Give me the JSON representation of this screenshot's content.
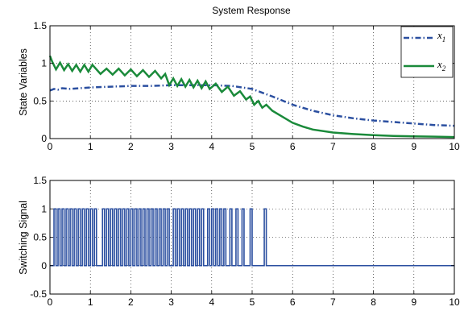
{
  "chart_data": [
    {
      "type": "line",
      "title": "System Response",
      "xlabel": "",
      "ylabel": "State Variables",
      "xlim": [
        0,
        10
      ],
      "ylim": [
        0,
        1.5
      ],
      "xticks": [
        0,
        1,
        2,
        3,
        4,
        5,
        6,
        7,
        8,
        9,
        10
      ],
      "yticks": [
        0,
        0.5,
        1,
        1.5
      ],
      "xtick_labels": [
        "0",
        "1",
        "2",
        "3",
        "4",
        "5",
        "6",
        "7",
        "8",
        "9",
        "10"
      ],
      "ytick_labels": [
        "0",
        "0.5",
        "1",
        "1.5"
      ],
      "grid": true,
      "legend_position": "top-right",
      "series": [
        {
          "name": "x1",
          "legend_main": "x",
          "legend_sub": "1",
          "color": "#2b4fa0",
          "style": "dash-dot",
          "x": [
            0,
            0.1,
            0.2,
            0.3,
            0.5,
            1,
            1.5,
            2,
            2.5,
            3,
            3.5,
            4,
            4.5,
            5,
            5.5,
            6,
            6.5,
            7,
            7.5,
            8,
            8.5,
            9,
            9.5,
            10
          ],
          "y": [
            0.64,
            0.66,
            0.65,
            0.67,
            0.66,
            0.68,
            0.69,
            0.7,
            0.7,
            0.71,
            0.71,
            0.71,
            0.7,
            0.66,
            0.56,
            0.45,
            0.37,
            0.31,
            0.27,
            0.24,
            0.22,
            0.2,
            0.18,
            0.17
          ]
        },
        {
          "name": "x2",
          "legend_main": "x",
          "legend_sub": "2",
          "color": "#1a8a3a",
          "style": "solid",
          "x": [
            0,
            0.05,
            0.15,
            0.25,
            0.35,
            0.45,
            0.55,
            0.65,
            0.75,
            0.85,
            0.95,
            1.05,
            1.25,
            1.4,
            1.55,
            1.7,
            1.85,
            2.0,
            2.15,
            2.3,
            2.45,
            2.6,
            2.75,
            2.85,
            2.95,
            3.05,
            3.15,
            3.25,
            3.35,
            3.45,
            3.55,
            3.65,
            3.75,
            3.85,
            3.95,
            4.1,
            4.25,
            4.4,
            4.55,
            4.7,
            4.85,
            4.95,
            5.05,
            5.15,
            5.25,
            5.35,
            5.5,
            5.75,
            6.0,
            6.25,
            6.5,
            7.0,
            7.5,
            8.0,
            8.5,
            9.0,
            9.5,
            10.0
          ],
          "y": [
            1.1,
            1.03,
            0.92,
            1.01,
            0.91,
            0.99,
            0.9,
            0.98,
            0.89,
            0.98,
            0.89,
            0.98,
            0.86,
            0.93,
            0.85,
            0.93,
            0.84,
            0.92,
            0.83,
            0.91,
            0.82,
            0.9,
            0.8,
            0.86,
            0.71,
            0.8,
            0.7,
            0.79,
            0.69,
            0.78,
            0.68,
            0.77,
            0.67,
            0.76,
            0.66,
            0.73,
            0.62,
            0.69,
            0.57,
            0.63,
            0.52,
            0.56,
            0.45,
            0.5,
            0.41,
            0.45,
            0.37,
            0.29,
            0.21,
            0.16,
            0.12,
            0.08,
            0.06,
            0.045,
            0.035,
            0.03,
            0.025,
            0.02
          ]
        }
      ]
    },
    {
      "type": "line",
      "title": "",
      "xlabel": "",
      "ylabel": "Switching Signal",
      "xlim": [
        0,
        10
      ],
      "ylim": [
        -0.5,
        1.5
      ],
      "xticks": [
        0,
        1,
        2,
        3,
        4,
        5,
        6,
        7,
        8,
        9,
        10
      ],
      "yticks": [
        -0.5,
        0,
        0.5,
        1,
        1.5
      ],
      "xtick_labels": [
        "0",
        "1",
        "2",
        "3",
        "4",
        "5",
        "6",
        "7",
        "8",
        "9",
        "10"
      ],
      "ytick_labels": [
        "-0.5",
        "0",
        "0.5",
        "1",
        "1.5"
      ],
      "grid": true,
      "series": [
        {
          "name": "",
          "color": "#2b4fa0",
          "style": "solid",
          "step": true,
          "pulses": [
            [
              0.1,
              0.15
            ],
            [
              0.2,
              0.25
            ],
            [
              0.3,
              0.35
            ],
            [
              0.4,
              0.45
            ],
            [
              0.5,
              0.55
            ],
            [
              0.6,
              0.65
            ],
            [
              0.7,
              0.75
            ],
            [
              0.8,
              0.85
            ],
            [
              0.9,
              0.95
            ],
            [
              1.0,
              1.05
            ],
            [
              1.1,
              1.15
            ],
            [
              1.3,
              1.35
            ],
            [
              1.4,
              1.45
            ],
            [
              1.5,
              1.55
            ],
            [
              1.6,
              1.65
            ],
            [
              1.7,
              1.75
            ],
            [
              1.8,
              1.85
            ],
            [
              1.9,
              1.95
            ],
            [
              2.0,
              2.05
            ],
            [
              2.1,
              2.15
            ],
            [
              2.2,
              2.25
            ],
            [
              2.3,
              2.35
            ],
            [
              2.4,
              2.45
            ],
            [
              2.5,
              2.55
            ],
            [
              2.6,
              2.65
            ],
            [
              2.7,
              2.75
            ],
            [
              2.8,
              2.85
            ],
            [
              2.9,
              2.95
            ],
            [
              3.05,
              3.1
            ],
            [
              3.15,
              3.2
            ],
            [
              3.25,
              3.3
            ],
            [
              3.35,
              3.4
            ],
            [
              3.45,
              3.5
            ],
            [
              3.55,
              3.6
            ],
            [
              3.65,
              3.7
            ],
            [
              3.75,
              3.8
            ],
            [
              3.9,
              3.95
            ],
            [
              4.0,
              4.05
            ],
            [
              4.1,
              4.15
            ],
            [
              4.2,
              4.25
            ],
            [
              4.3,
              4.35
            ],
            [
              4.45,
              4.5
            ],
            [
              4.6,
              4.65
            ],
            [
              4.75,
              4.8
            ],
            [
              4.95,
              5.0
            ],
            [
              5.3,
              5.35
            ]
          ],
          "after": {
            "x": 5.35,
            "y": 0
          }
        }
      ]
    }
  ]
}
